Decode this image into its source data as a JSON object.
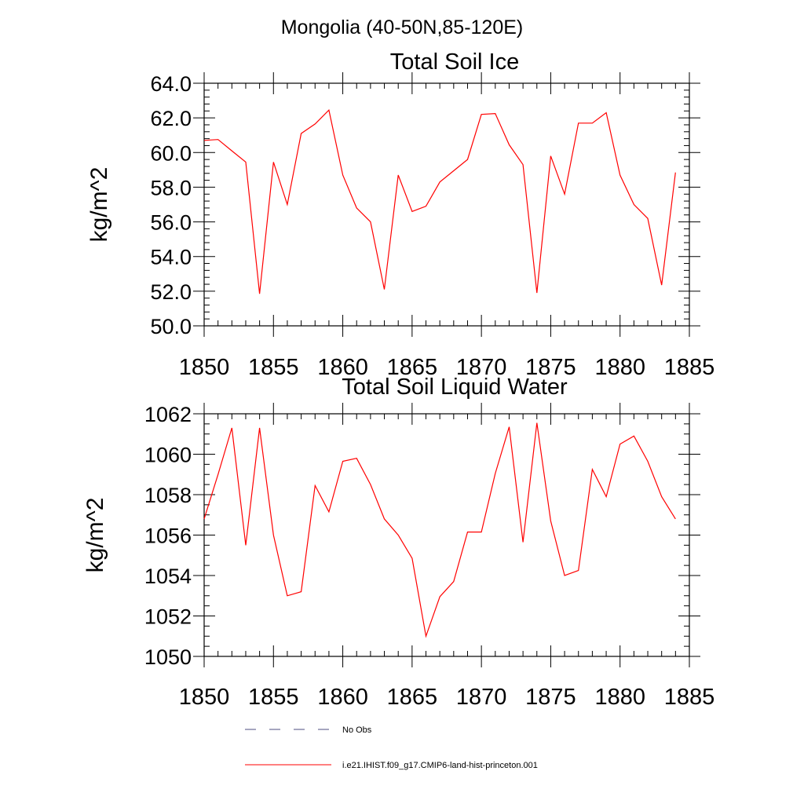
{
  "suptitle": "Mongolia (40-50N,85-120E)",
  "chart_data": [
    {
      "type": "line",
      "title": "Total Soil Ice",
      "ylabel": "kg/m^2",
      "xlim": [
        1850,
        1885
      ],
      "ylim": [
        50,
        64
      ],
      "x_ticks": [
        "1850",
        "1855",
        "1860",
        "1865",
        "1870",
        "1875",
        "1880",
        "1885"
      ],
      "y_ticks": [
        "50.0",
        "52.0",
        "54.0",
        "56.0",
        "58.0",
        "60.0",
        "62.0",
        "64.0"
      ],
      "x": [
        1850,
        1851,
        1852,
        1853,
        1854,
        1855,
        1856,
        1857,
        1858,
        1859,
        1860,
        1861,
        1862,
        1863,
        1864,
        1865,
        1866,
        1867,
        1868,
        1869,
        1870,
        1871,
        1872,
        1873,
        1874,
        1875,
        1876,
        1877,
        1878,
        1879,
        1880,
        1881,
        1882,
        1883,
        1884
      ],
      "series": [
        {
          "name": "i.e21.IHIST.f09_g17.CMIP6-land-hist-princeton.001",
          "color": "#ff0000",
          "values": [
            60.7,
            60.75,
            60.1,
            59.45,
            51.85,
            59.45,
            57.0,
            61.1,
            61.65,
            62.45,
            58.7,
            56.8,
            56.0,
            52.1,
            58.7,
            56.6,
            56.9,
            58.3,
            58.95,
            59.6,
            62.2,
            62.25,
            60.45,
            59.3,
            51.9,
            59.8,
            57.6,
            61.7,
            61.7,
            62.3,
            58.7,
            57.0,
            56.2,
            52.35,
            58.85
          ]
        }
      ]
    },
    {
      "type": "line",
      "title": "Total Soil Liquid Water",
      "ylabel": "kg/m^2",
      "xlim": [
        1850,
        1885
      ],
      "ylim": [
        1050,
        1062
      ],
      "x_ticks": [
        "1850",
        "1855",
        "1860",
        "1865",
        "1870",
        "1875",
        "1880",
        "1885"
      ],
      "y_ticks": [
        "1050",
        "1052",
        "1054",
        "1056",
        "1058",
        "1060",
        "1062"
      ],
      "x": [
        1850,
        1851,
        1852,
        1853,
        1854,
        1855,
        1856,
        1857,
        1858,
        1859,
        1860,
        1861,
        1862,
        1863,
        1864,
        1865,
        1866,
        1867,
        1868,
        1869,
        1870,
        1871,
        1872,
        1873,
        1874,
        1875,
        1876,
        1877,
        1878,
        1879,
        1880,
        1881,
        1882,
        1883,
        1884
      ],
      "series": [
        {
          "name": "i.e21.IHIST.f09_g17.CMIP6-land-hist-princeton.001",
          "color": "#ff0000",
          "values": [
            1056.8,
            1059.0,
            1061.3,
            1055.5,
            1061.3,
            1056.0,
            1053.0,
            1053.2,
            1058.45,
            1057.15,
            1059.65,
            1059.8,
            1058.5,
            1056.8,
            1056.0,
            1054.85,
            1051.0,
            1052.95,
            1053.7,
            1056.15,
            1056.15,
            1059.05,
            1061.35,
            1055.65,
            1061.55,
            1056.7,
            1054.0,
            1054.25,
            1059.25,
            1057.9,
            1060.5,
            1060.9,
            1059.65,
            1057.9,
            1056.8
          ]
        }
      ]
    }
  ],
  "legend": {
    "items": [
      {
        "label": "No Obs",
        "color": "#4d4d80",
        "style": "dashed"
      },
      {
        "label": "i.e21.IHIST.f09_g17.CMIP6-land-hist-princeton.001",
        "color": "#ff0000",
        "style": "solid"
      }
    ]
  }
}
